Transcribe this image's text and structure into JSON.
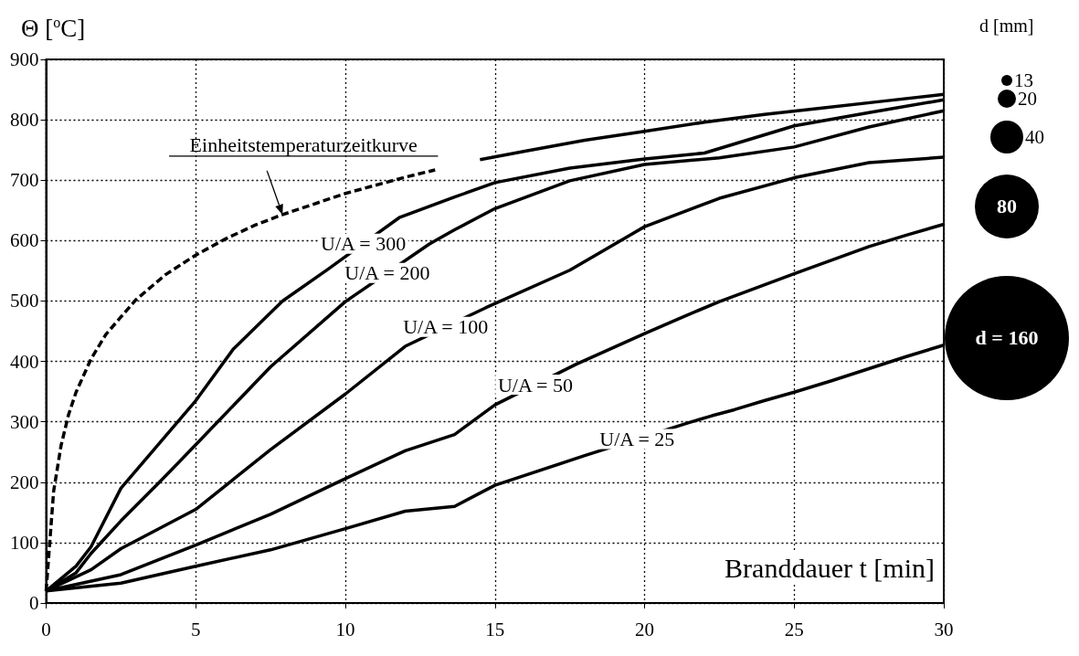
{
  "chart_data": {
    "type": "line",
    "ylabel": "Θ [$^{o}$C]",
    "xlabel": "Branddauer t [min]",
    "xlim": [
      0,
      30
    ],
    "xticks": [
      0,
      5,
      10,
      15,
      20,
      25,
      30
    ],
    "ylim": [
      0,
      900
    ],
    "yticks": [
      0,
      100,
      200,
      300,
      400,
      500,
      600,
      700,
      800,
      900
    ],
    "grid": true,
    "marker": "none",
    "series": [
      {
        "name": "Einheitstemperaturzeitkurve",
        "color": "#000000",
        "line_style": "dashed",
        "x": [
          0,
          0.25,
          0.5,
          0.75,
          1,
          1.5,
          2,
          3,
          4,
          5,
          6,
          7,
          7.9,
          10,
          12,
          13
        ],
        "values": [
          20,
          185,
          261,
          312,
          349,
          404,
          445,
          502,
          544,
          576,
          603,
          626,
          643,
          678,
          705,
          717
        ]
      },
      {
        "color": "#000000",
        "line_style": "solid",
        "x": [
          14.5,
          16,
          18,
          20,
          22,
          24,
          26,
          28,
          30
        ],
        "values": [
          734,
          748,
          766,
          781,
          796,
          809,
          820,
          831,
          842
        ]
      },
      {
        "name": "U/A = 300",
        "color": "#000000",
        "line_style": "solid",
        "x": [
          0,
          1,
          1.5,
          2.5,
          5,
          6.25,
          7.9,
          9.4,
          11.8,
          13.65,
          15,
          17.5,
          20,
          22,
          25,
          27.5,
          30
        ],
        "values": [
          20,
          61,
          93,
          190,
          335,
          420,
          500,
          552,
          638,
          672,
          696,
          720,
          735,
          745,
          790,
          812,
          833
        ]
      },
      {
        "name": "U/A = 200",
        "color": "#000000",
        "line_style": "solid",
        "x": [
          0,
          1,
          1.5,
          2.5,
          3.75,
          5,
          7.5,
          10,
          12.8,
          13.65,
          15,
          17.5,
          20,
          22.5,
          25,
          27.5,
          30
        ],
        "values": [
          20,
          50,
          82,
          136,
          198,
          262,
          391,
          499,
          594,
          618,
          653,
          699,
          726,
          737,
          755,
          788,
          815
        ]
      },
      {
        "name": "U/A = 100",
        "color": "#000000",
        "line_style": "solid",
        "x": [
          0,
          1.5,
          2.5,
          5,
          7.5,
          10,
          12,
          14.7,
          17.5,
          20,
          22.5,
          25,
          27.5,
          30
        ],
        "values": [
          20,
          55,
          90,
          155,
          254,
          346,
          425,
          489,
          551,
          623,
          670,
          704,
          729,
          738
        ]
      },
      {
        "name": "U/A = 50",
        "color": "#000000",
        "line_style": "solid",
        "x": [
          0,
          2.5,
          5,
          7.5,
          10,
          12,
          13.65,
          15,
          17.7,
          20,
          21.25,
          22.5,
          25,
          27.5,
          28.75,
          30
        ],
        "values": [
          20,
          47,
          96,
          147,
          206,
          252,
          279,
          328,
          395,
          446,
          473,
          499,
          545,
          590,
          609,
          627
        ]
      },
      {
        "name": "U/A = 25",
        "color": "#000000",
        "line_style": "solid",
        "x": [
          0,
          2.5,
          5,
          7.5,
          10,
          12,
          13.65,
          15,
          18,
          21.5,
          22.25,
          23,
          24,
          25,
          26.25,
          27.5,
          28.75,
          30
        ],
        "values": [
          20,
          33,
          61,
          88,
          123,
          152,
          160,
          195,
          244,
          299,
          310,
          320,
          335,
          349,
          368,
          388,
          408,
          427
        ]
      }
    ],
    "annotations": [
      "d [mm]",
      "13",
      "20",
      "40",
      "80",
      "d = 160"
    ]
  }
}
